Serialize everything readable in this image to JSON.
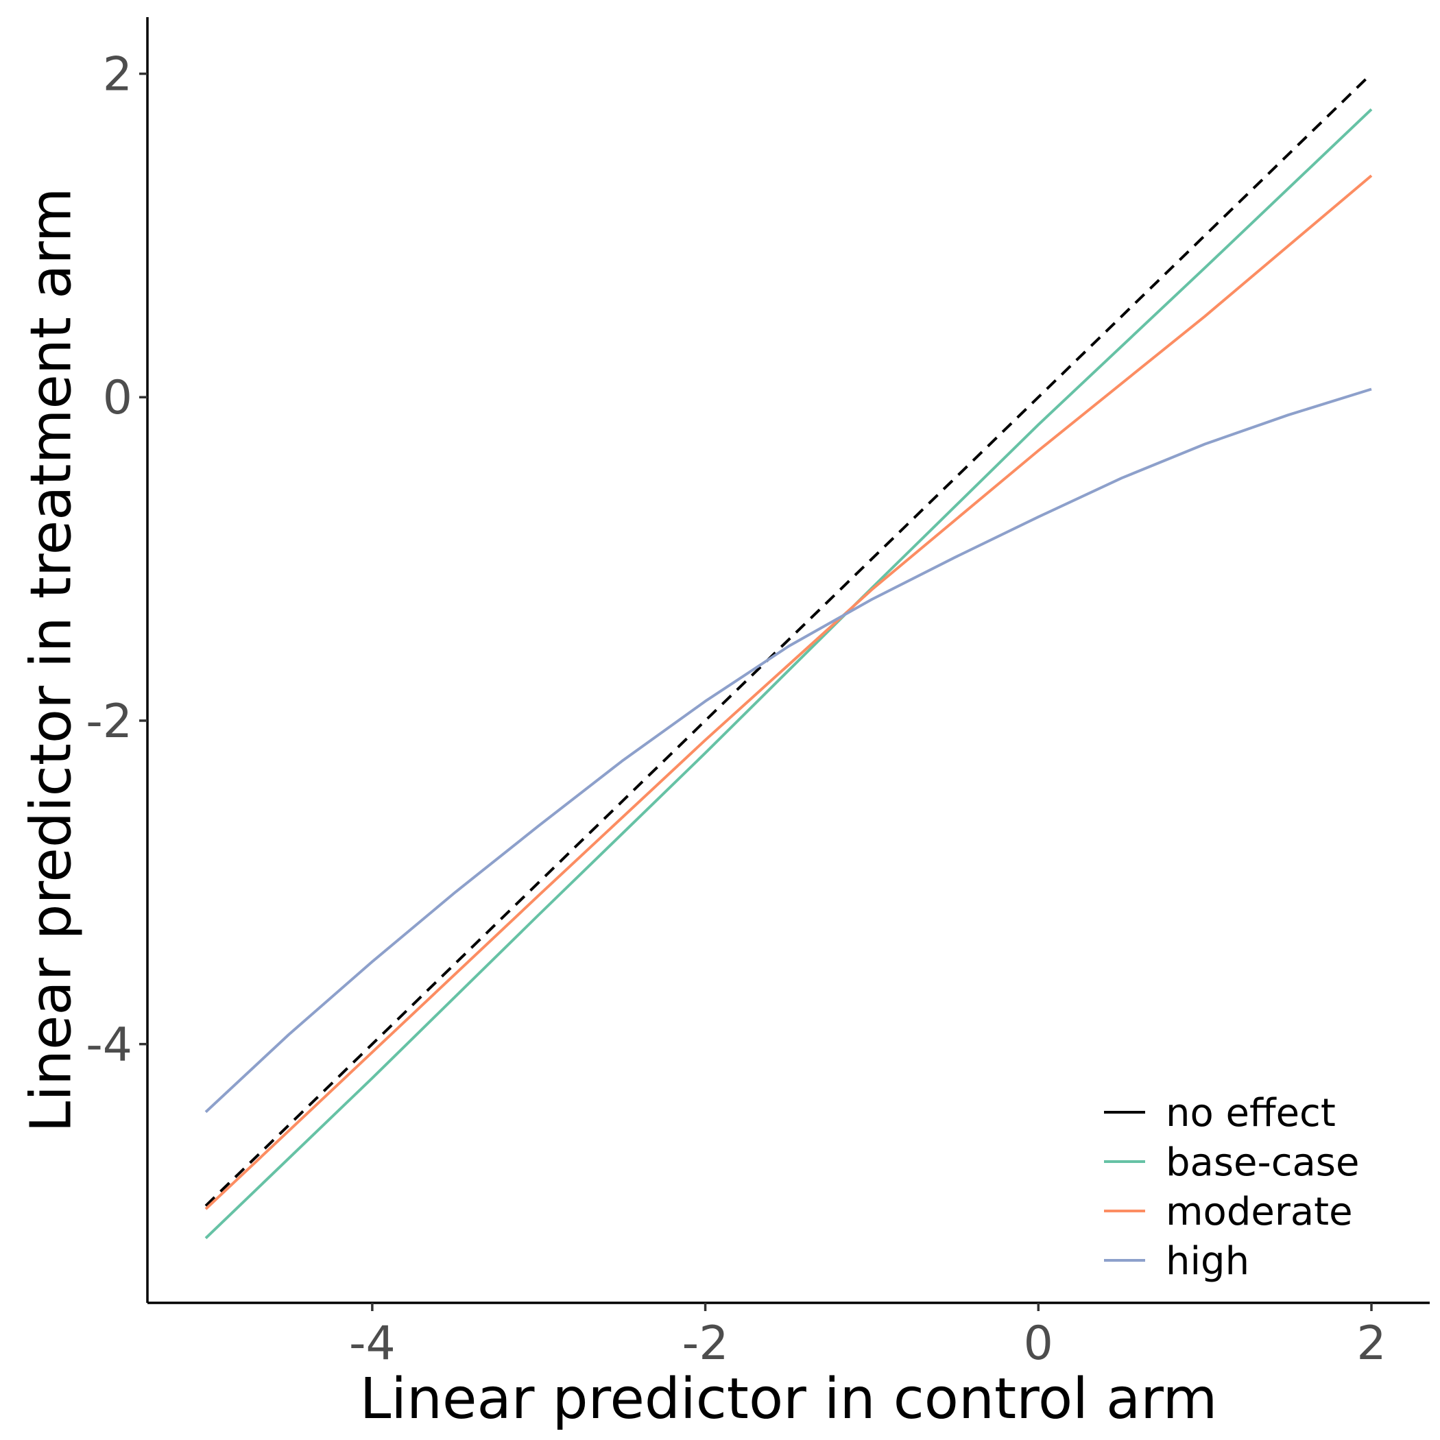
{
  "chart_data": {
    "type": "line",
    "title": "",
    "xlabel": "Linear predictor in control arm",
    "ylabel": "Linear predictor in treatment arm",
    "xlim": [
      -5.35,
      2.35
    ],
    "ylim": [
      -5.6,
      2.35
    ],
    "x_ticks": [
      -4,
      -2,
      0,
      2
    ],
    "y_ticks": [
      -4,
      -2,
      0,
      2
    ],
    "x_tick_labels": [
      "-4",
      "-2",
      "0",
      "2"
    ],
    "y_tick_labels": [
      "-4",
      "-2",
      "0",
      "2"
    ],
    "grid": false,
    "legend_position": "bottom-right",
    "series": [
      {
        "name": "no effect",
        "color": "#000000",
        "dash": true,
        "x": [
          -5.0,
          -4.0,
          -3.0,
          -2.0,
          -1.0,
          0.0,
          1.0,
          2.0
        ],
        "y": [
          -5.0,
          -4.0,
          -3.0,
          -2.0,
          -1.0,
          0.0,
          1.0,
          2.0
        ]
      },
      {
        "name": "base-case",
        "color": "#66c2a5",
        "dash": false,
        "x": [
          -5.0,
          -4.0,
          -3.0,
          -2.0,
          -1.0,
          0.0,
          1.0,
          2.0
        ],
        "y": [
          -5.2,
          -4.21,
          -3.2,
          -2.2,
          -1.18,
          -0.17,
          0.8,
          1.78
        ]
      },
      {
        "name": "moderate",
        "color": "#fc8d62",
        "dash": false,
        "x": [
          -5.0,
          -4.0,
          -3.0,
          -2.0,
          -1.0,
          0.0,
          1.0,
          2.0
        ],
        "y": [
          -5.02,
          -4.05,
          -3.08,
          -2.12,
          -1.19,
          -0.33,
          0.5,
          1.37
        ]
      },
      {
        "name": "high",
        "color": "#8da0cb",
        "dash": false,
        "x": [
          -5.0,
          -4.5,
          -4.0,
          -3.5,
          -3.0,
          -2.5,
          -2.0,
          -1.5,
          -1.0,
          -0.5,
          0.0,
          0.5,
          1.0,
          1.5,
          2.0
        ],
        "y": [
          -4.42,
          -3.94,
          -3.49,
          -3.06,
          -2.65,
          -2.25,
          -1.88,
          -1.54,
          -1.25,
          -0.99,
          -0.74,
          -0.5,
          -0.29,
          -0.11,
          0.05
        ]
      }
    ]
  }
}
